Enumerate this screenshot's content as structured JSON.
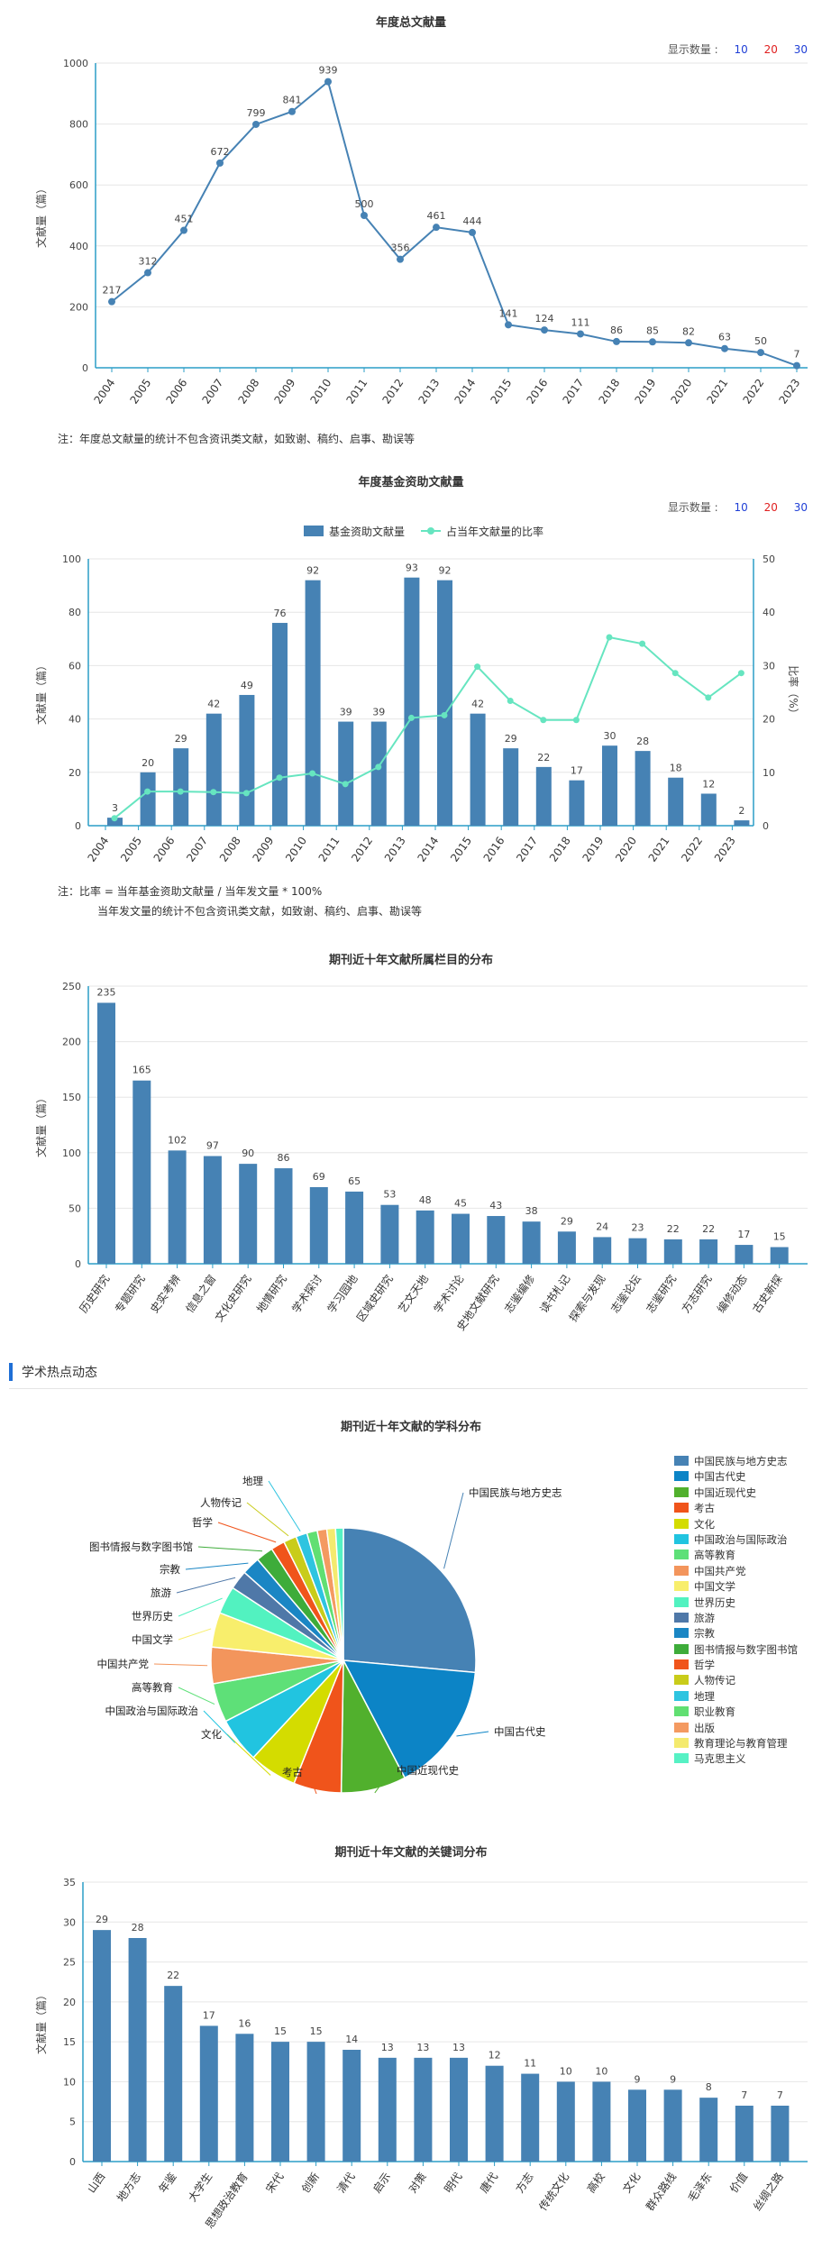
{
  "count_control": {
    "label": "显示数量 :",
    "options": [
      "10",
      "20",
      "30"
    ]
  },
  "colors": {
    "bar": "#4682b4",
    "line": "#4682b4",
    "ratio_line": "#66e5c0",
    "axis": "#2b9dc7"
  },
  "chart_data": [
    {
      "type": "line",
      "title": "年度总文献量",
      "ylabel": "文献量（篇）",
      "ylim": [
        0,
        1000
      ],
      "yticks": [
        0,
        200,
        400,
        600,
        800,
        1000
      ],
      "x": [
        "2004",
        "2005",
        "2006",
        "2007",
        "2008",
        "2009",
        "2010",
        "2011",
        "2012",
        "2013",
        "2014",
        "2015",
        "2016",
        "2017",
        "2018",
        "2019",
        "2020",
        "2021",
        "2022",
        "2023"
      ],
      "values": [
        217,
        312,
        451,
        672,
        799,
        841,
        939,
        500,
        356,
        461,
        444,
        141,
        124,
        111,
        86,
        85,
        82,
        63,
        50,
        7
      ],
      "note": "注：年度总文献量的统计不包含资讯类文献，如致谢、稿约、启事、勘误等"
    },
    {
      "type": "bar",
      "title": "年度基金资助文献量",
      "ylabel": "文献量（篇）",
      "y2label": "比率（%）",
      "ylim": [
        0,
        100
      ],
      "y2lim": [
        0,
        50
      ],
      "yticks": [
        0,
        20,
        40,
        60,
        80,
        100
      ],
      "y2ticks": [
        0,
        10,
        20,
        30,
        40,
        50
      ],
      "x": [
        "2004",
        "2005",
        "2006",
        "2007",
        "2008",
        "2009",
        "2010",
        "2011",
        "2012",
        "2013",
        "2014",
        "2015",
        "2016",
        "2017",
        "2018",
        "2019",
        "2020",
        "2021",
        "2022",
        "2023"
      ],
      "series": [
        {
          "name": "基金资助文献量",
          "values": [
            3,
            20,
            29,
            42,
            49,
            76,
            92,
            39,
            39,
            93,
            92,
            42,
            29,
            22,
            17,
            30,
            28,
            18,
            12,
            2
          ]
        },
        {
          "name": "占当年文献量的比率",
          "values": [
            1.4,
            6.4,
            6.4,
            6.3,
            6.1,
            9.0,
            9.8,
            7.8,
            11.0,
            20.2,
            20.7,
            29.8,
            23.4,
            19.8,
            19.8,
            35.3,
            34.1,
            28.6,
            24.0,
            28.6
          ]
        }
      ],
      "note_lines": [
        "注：比率 = 当年基金资助文献量 / 当年发文量 * 100%",
        "当年发文量的统计不包含资讯类文献，如致谢、稿约、启事、勘误等"
      ]
    },
    {
      "type": "bar",
      "title": "期刊近十年文献所属栏目的分布",
      "ylabel": "文献量（篇）",
      "ylim": [
        0,
        250
      ],
      "yticks": [
        0,
        50,
        100,
        150,
        200,
        250
      ],
      "categories": [
        "历史研究",
        "专题研究",
        "史实考辨",
        "信息之窗",
        "文化史研究",
        "地情研究",
        "学术探讨",
        "学习园地",
        "区域史研究",
        "艺文天地",
        "学术讨论",
        "史地文献研究",
        "志鉴编修",
        "读书札记",
        "探索与发现",
        "志鉴论坛",
        "志鉴研究",
        "方志研究",
        "编修动态",
        "古史新探"
      ],
      "values": [
        235,
        165,
        102,
        97,
        90,
        86,
        69,
        65,
        53,
        48,
        45,
        43,
        38,
        29,
        24,
        23,
        22,
        22,
        17,
        15
      ]
    },
    {
      "type": "pie",
      "title": "期刊近十年文献的学科分布",
      "labels": [
        "中国民族与地方史志",
        "中国古代史",
        "中国近现代史",
        "考古",
        "文化",
        "中国政治与国际政治",
        "高等教育",
        "中国共产党",
        "中国文学",
        "世界历史",
        "旅游",
        "宗教",
        "图书情报与数字图书馆",
        "哲学",
        "人物传记",
        "地理",
        "职业教育",
        "出版",
        "教育理论与教育管理",
        "马克思主义"
      ],
      "values": [
        250,
        150,
        75,
        55,
        55,
        52,
        45,
        42,
        40,
        32,
        22,
        21,
        20,
        16,
        15,
        13,
        12,
        11,
        10,
        9
      ],
      "colors": [
        "#4682b4",
        "#0c84c6",
        "#51b02d",
        "#f0541b",
        "#d4dc00",
        "#21c4e0",
        "#5ee078",
        "#f3955c",
        "#f8ee6c",
        "#52f2c0",
        "#4f78a8",
        "#1a86c4",
        "#3eac3a",
        "#f0541b",
        "#c9cc1a",
        "#2ec4e0",
        "#61df72",
        "#f49a61",
        "#f4ea6e",
        "#56f1c4"
      ]
    },
    {
      "type": "bar",
      "title": "期刊近十年文献的关键词分布",
      "ylabel": "文献量（篇）",
      "ylim": [
        0,
        35
      ],
      "yticks": [
        0,
        5,
        10,
        15,
        20,
        25,
        30,
        35
      ],
      "categories": [
        "山西",
        "地方志",
        "年鉴",
        "大学生",
        "思想政治教育",
        "宋代",
        "创新",
        "清代",
        "启示",
        "对策",
        "明代",
        "唐代",
        "方志",
        "传统文化",
        "高校",
        "文化",
        "群众路线",
        "毛泽东",
        "价值",
        "丝绸之路"
      ],
      "values": [
        29,
        28,
        22,
        17,
        16,
        15,
        15,
        14,
        13,
        13,
        13,
        12,
        11,
        10,
        10,
        9,
        9,
        8,
        7,
        7
      ]
    }
  ],
  "hot_section": {
    "title": "学术热点动态"
  }
}
